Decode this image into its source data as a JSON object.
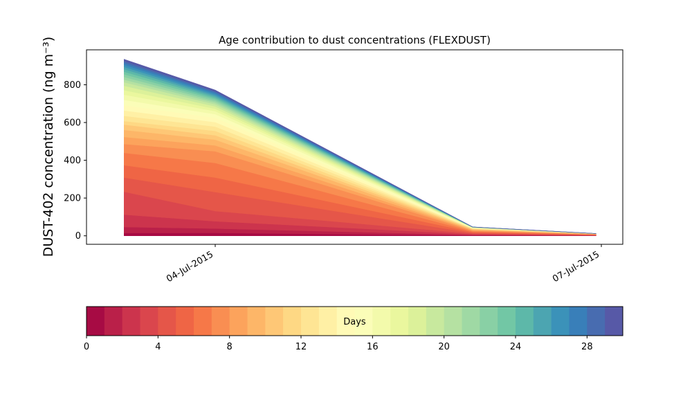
{
  "chart_data": {
    "type": "area",
    "stacked": true,
    "title": "Age contribution to dust concentrations (FLEXDUST)",
    "ylabel": "DUST-402 concentration (ng m⁻³)",
    "xlabel": "",
    "x": [
      "2015-07-03T07:00",
      "2015-07-04T00:00",
      "2015-07-06T00:00",
      "2015-07-06T23:00"
    ],
    "xlim": [
      "2015-07-03T00:00",
      "2015-07-07T04:00"
    ],
    "xticks": [
      "2015-07-04",
      "2015-07-07"
    ],
    "xtick_labels": [
      "04-Jul-2015",
      "07-Jul-2015"
    ],
    "ylim": [
      -45,
      985
    ],
    "yticks": [
      0,
      200,
      400,
      600,
      800
    ],
    "grid": false,
    "colormap": "Spectral",
    "layer_bands": 30,
    "totals": [
      935,
      772,
      47,
      12
    ],
    "cumulative_fractions": [
      [
        0,
        0,
        0,
        0
      ],
      [
        0.016,
        0.02,
        0.05,
        0.05
      ],
      [
        0.05,
        0.05,
        0.1,
        0.12
      ],
      [
        0.12,
        0.1,
        0.18,
        0.2
      ],
      [
        0.25,
        0.17,
        0.25,
        0.3
      ],
      [
        0.33,
        0.3,
        0.33,
        0.4
      ],
      [
        0.4,
        0.4,
        0.42,
        0.5
      ],
      [
        0.47,
        0.5,
        0.5,
        0.6
      ],
      [
        0.52,
        0.58,
        0.58,
        0.7
      ],
      [
        0.56,
        0.62,
        0.64,
        0.76
      ],
      [
        0.6,
        0.66,
        0.7,
        0.82
      ],
      [
        0.63,
        0.69,
        0.76,
        0.86
      ],
      [
        0.65,
        0.72,
        0.8,
        0.89
      ],
      [
        0.68,
        0.75,
        0.84,
        0.91
      ],
      [
        0.71,
        0.78,
        0.87,
        0.93
      ],
      [
        0.74,
        0.81,
        0.895,
        0.94
      ],
      [
        0.77,
        0.835,
        0.915,
        0.95
      ],
      [
        0.8,
        0.855,
        0.93,
        0.96
      ],
      [
        0.825,
        0.872,
        0.942,
        0.967
      ],
      [
        0.85,
        0.888,
        0.952,
        0.973
      ],
      [
        0.87,
        0.902,
        0.96,
        0.978
      ],
      [
        0.885,
        0.914,
        0.967,
        0.982
      ],
      [
        0.9,
        0.925,
        0.973,
        0.986
      ],
      [
        0.915,
        0.936,
        0.978,
        0.989
      ],
      [
        0.93,
        0.946,
        0.983,
        0.992
      ],
      [
        0.944,
        0.956,
        0.987,
        0.994
      ],
      [
        0.957,
        0.966,
        0.991,
        0.996
      ],
      [
        0.969,
        0.975,
        0.994,
        0.997
      ],
      [
        0.98,
        0.984,
        0.996,
        0.998
      ],
      [
        0.99,
        0.992,
        0.998,
        0.999
      ],
      [
        1,
        1,
        1,
        1
      ]
    ],
    "colorbar": {
      "label": "Days",
      "min": 0,
      "max": 30,
      "ticks": [
        0,
        4,
        8,
        12,
        16,
        20,
        24,
        28
      ]
    }
  }
}
